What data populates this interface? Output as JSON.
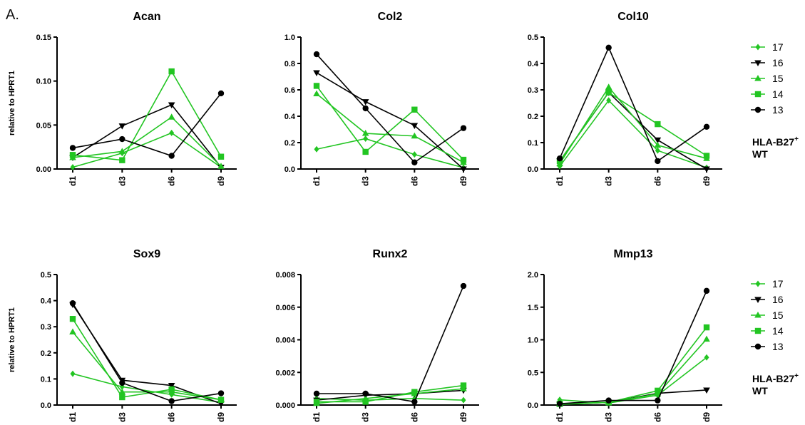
{
  "panel_label": "A.",
  "legend": {
    "entries": [
      {
        "name": "17",
        "marker": "diamond",
        "color": "#22c522"
      },
      {
        "name": "16",
        "marker": "tri-down",
        "color": "#000000"
      },
      {
        "name": "15",
        "marker": "tri-up",
        "color": "#22c522"
      },
      {
        "name": "14",
        "marker": "square",
        "color": "#22c522"
      },
      {
        "name": "13",
        "marker": "circle",
        "color": "#000000"
      }
    ],
    "groups": [
      {
        "label": "HLA-B27",
        "sup": "+",
        "color": "#22c522"
      },
      {
        "label": "WT",
        "sup": "",
        "color": "#000000"
      }
    ]
  },
  "chart_data": [
    {
      "type": "line",
      "title": "Acan",
      "ylabel": "relative to HPRT1",
      "categories": [
        "d1",
        "d3",
        "d6",
        "d9"
      ],
      "ylim": [
        0,
        0.15
      ],
      "yticks": [
        0,
        0.05,
        0.1,
        0.15
      ],
      "ytick_labels": [
        "0.00",
        "0.05",
        "0.10",
        "0.15"
      ],
      "series": [
        {
          "name": "17",
          "values": [
            0.002,
            0.018,
            0.041,
            0.002
          ]
        },
        {
          "name": "16",
          "values": [
            0.013,
            0.049,
            0.073,
            0.002
          ]
        },
        {
          "name": "15",
          "values": [
            0.013,
            0.02,
            0.059,
            0.003
          ]
        },
        {
          "name": "14",
          "values": [
            0.016,
            0.01,
            0.111,
            0.014
          ]
        },
        {
          "name": "13",
          "values": [
            0.024,
            0.034,
            0.015,
            0.086
          ]
        }
      ]
    },
    {
      "type": "line",
      "title": "Col2",
      "ylabel": "",
      "categories": [
        "d1",
        "d3",
        "d6",
        "d9"
      ],
      "ylim": [
        0,
        1.0
      ],
      "yticks": [
        0,
        0.2,
        0.4,
        0.6,
        0.8,
        1.0
      ],
      "ytick_labels": [
        "0.0",
        "0.2",
        "0.4",
        "0.6",
        "0.8",
        "1.0"
      ],
      "series": [
        {
          "name": "17",
          "values": [
            0.15,
            0.23,
            0.11,
            0.01
          ]
        },
        {
          "name": "16",
          "values": [
            0.73,
            0.51,
            0.33,
            0.0
          ]
        },
        {
          "name": "15",
          "values": [
            0.57,
            0.27,
            0.25,
            0.05
          ]
        },
        {
          "name": "14",
          "values": [
            0.63,
            0.13,
            0.45,
            0.07
          ]
        },
        {
          "name": "13",
          "values": [
            0.87,
            0.46,
            0.05,
            0.31
          ]
        }
      ]
    },
    {
      "type": "line",
      "title": "Col10",
      "ylabel": "",
      "categories": [
        "d1",
        "d3",
        "d6",
        "d9"
      ],
      "ylim": [
        0,
        0.5
      ],
      "yticks": [
        0,
        0.1,
        0.2,
        0.3,
        0.4,
        0.5
      ],
      "ytick_labels": [
        "0.0",
        "0.1",
        "0.2",
        "0.3",
        "0.4",
        "0.5"
      ],
      "series": [
        {
          "name": "17",
          "values": [
            0.01,
            0.26,
            0.07,
            0.005
          ]
        },
        {
          "name": "16",
          "values": [
            0.03,
            0.29,
            0.11,
            0.0
          ]
        },
        {
          "name": "15",
          "values": [
            0.02,
            0.31,
            0.09,
            0.04
          ]
        },
        {
          "name": "14",
          "values": [
            0.03,
            0.29,
            0.17,
            0.05
          ]
        },
        {
          "name": "13",
          "values": [
            0.04,
            0.46,
            0.03,
            0.16
          ]
        }
      ]
    },
    {
      "type": "line",
      "title": "Sox9",
      "ylabel": "relative to HPRT1",
      "categories": [
        "d1",
        "d3",
        "d6",
        "d9"
      ],
      "ylim": [
        0,
        0.5
      ],
      "yticks": [
        0,
        0.1,
        0.2,
        0.3,
        0.4,
        0.5
      ],
      "ytick_labels": [
        "0.0",
        "0.1",
        "0.2",
        "0.3",
        "0.4",
        "0.5"
      ],
      "series": [
        {
          "name": "17",
          "values": [
            0.12,
            0.07,
            0.04,
            0.01
          ]
        },
        {
          "name": "16",
          "values": [
            0.385,
            0.095,
            0.075,
            0.005
          ]
        },
        {
          "name": "15",
          "values": [
            0.28,
            0.05,
            0.05,
            0.02
          ]
        },
        {
          "name": "14",
          "values": [
            0.33,
            0.03,
            0.06,
            0.02
          ]
        },
        {
          "name": "13",
          "values": [
            0.39,
            0.085,
            0.015,
            0.045
          ]
        }
      ]
    },
    {
      "type": "line",
      "title": "Runx2",
      "ylabel": "",
      "categories": [
        "d1",
        "d3",
        "d6",
        "d9"
      ],
      "ylim": [
        0,
        0.008
      ],
      "yticks": [
        0,
        0.002,
        0.004,
        0.006,
        0.008
      ],
      "ytick_labels": [
        "0.000",
        "0.002",
        "0.004",
        "0.006",
        "0.008"
      ],
      "series": [
        {
          "name": "17",
          "values": [
            0.0004,
            0.0003,
            0.0004,
            0.0003
          ]
        },
        {
          "name": "16",
          "values": [
            0.0003,
            0.0006,
            0.0007,
            0.0009
          ]
        },
        {
          "name": "15",
          "values": [
            0.0001,
            0.0004,
            0.0007,
            0.001
          ]
        },
        {
          "name": "14",
          "values": [
            0.0002,
            0.0002,
            0.0008,
            0.0012
          ]
        },
        {
          "name": "13",
          "values": [
            0.0007,
            0.0007,
            0.0002,
            0.0073
          ]
        }
      ]
    },
    {
      "type": "line",
      "title": "Mmp13",
      "ylabel": "",
      "categories": [
        "d1",
        "d3",
        "d6",
        "d9"
      ],
      "ylim": [
        0,
        2.0
      ],
      "yticks": [
        0,
        0.5,
        1.0,
        1.5,
        2.0
      ],
      "ytick_labels": [
        "0.0",
        "0.5",
        "1.0",
        "1.5",
        "2.0"
      ],
      "series": [
        {
          "name": "17",
          "values": [
            0.08,
            0.03,
            0.15,
            0.73
          ]
        },
        {
          "name": "16",
          "values": [
            0.01,
            0.04,
            0.18,
            0.23
          ]
        },
        {
          "name": "15",
          "values": [
            0.01,
            0.04,
            0.17,
            1.01
          ]
        },
        {
          "name": "14",
          "values": [
            0.02,
            0.04,
            0.22,
            1.19
          ]
        },
        {
          "name": "13",
          "values": [
            0.02,
            0.07,
            0.07,
            1.75
          ]
        }
      ]
    }
  ]
}
